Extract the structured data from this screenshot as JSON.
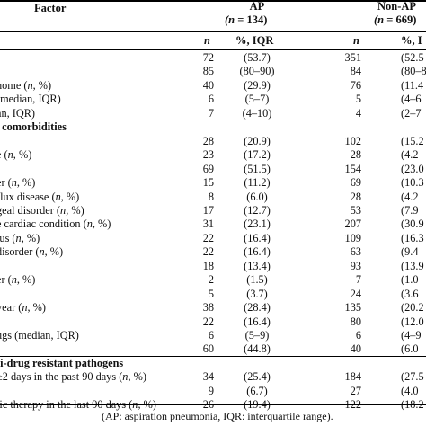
{
  "header": {
    "factor": "Factor",
    "ap_title": "AP",
    "ap_n_prefix": "(n",
    "ap_n_suffix": " = 134)",
    "nonap_title": "Non-AP",
    "nonap_n_prefix": "(n",
    "nonap_n_suffix": " = 669)",
    "col_n": "n",
    "col_pct": "%, IQR",
    "col_n2": "n",
    "col_pct2": "%, I"
  },
  "rows": [
    {
      "factor": "",
      "ap_n": "72",
      "ap_v": "(53.7)",
      "nap_n": "351",
      "nap_v": "(52.5"
    },
    {
      "factor": "",
      "ap_n": "85",
      "ap_v": "(80–90)",
      "nap_n": "84",
      "nap_v": "(80–8"
    },
    {
      "factor": " home (",
      "fi": "n",
      "fs": ", %)",
      "ap_n": "40",
      "ap_v": "(29.9)",
      "nap_n": "76",
      "nap_v": "(11.4"
    },
    {
      "factor": " (median, IQR)",
      "ap_n": "6",
      "ap_v": "(5–7)",
      "nap_n": "5",
      "nap_v": "(4–6"
    },
    {
      "factor": "an, IQR)",
      "ap_n": "7",
      "ap_v": "(4–10)",
      "nap_n": "4",
      "nap_v": "(2–7"
    },
    {
      "section": ", comorbidities"
    },
    {
      "factor": "",
      "ap_n": "28",
      "ap_v": "(20.9)",
      "nap_n": "102",
      "nap_v": "(15.2"
    },
    {
      "factor": "e (",
      "fi": "n",
      "fs": ", %)",
      "ap_n": "23",
      "ap_v": "(17.2)",
      "nap_n": "28",
      "nap_v": "(4.2"
    },
    {
      "factor": "",
      "ap_n": "69",
      "ap_v": "(51.5)",
      "nap_n": "154",
      "nap_v": "(23.0"
    },
    {
      "factor": "er (",
      "fi": "n",
      "fs": ", %)",
      "ap_n": "15",
      "ap_v": "(11.2)",
      "nap_n": "69",
      "nap_v": "(10.3"
    },
    {
      "factor": "flux disease (",
      "fi": "n",
      "fs": ", %)",
      "ap_n": "8",
      "ap_v": "(6.0)",
      "nap_n": "28",
      "nap_v": "(4.2"
    },
    {
      "factor": "geal disorder (",
      "fi": "n",
      "fs": ", %)",
      "ap_n": "17",
      "ap_v": "(12.7)",
      "nap_n": "53",
      "nap_v": "(7.9"
    },
    {
      "factor": "e cardiac condition (",
      "fi": "n",
      "fs": ", %)",
      "ap_n": "31",
      "ap_v": "(23.1)",
      "nap_n": "207",
      "nap_v": "(30.9"
    },
    {
      "factor": "tus (",
      "fi": "n",
      "fs": ", %)",
      "ap_n": "22",
      "ap_v": "(16.4)",
      "nap_n": "109",
      "nap_v": "(16.3"
    },
    {
      "factor": "disorder (",
      "fi": "n",
      "fs": ", %)",
      "ap_n": "22",
      "ap_v": "(16.4)",
      "nap_n": "63",
      "nap_v": "(9.4"
    },
    {
      "factor": "",
      "ap_n": "18",
      "ap_v": "(13.4)",
      "nap_n": "93",
      "nap_v": "(13.9"
    },
    {
      "factor": "er (",
      "fi": "n",
      "fs": ", %)",
      "ap_n": "2",
      "ap_v": "(1.5)",
      "nap_n": "7",
      "nap_v": "(1.0"
    },
    {
      "factor": "",
      "ap_n": "5",
      "ap_v": "(3.7)",
      "nap_n": "24",
      "nap_v": "(3.6"
    },
    {
      "factor": " year (",
      "fi": "n",
      "fs": ", %)",
      "ap_n": "38",
      "ap_v": "(28.4)",
      "nap_n": "135",
      "nap_v": "(20.2"
    },
    {
      "factor": "",
      "ap_n": "22",
      "ap_v": "(16.4)",
      "nap_n": "80",
      "nap_v": "(12.0"
    },
    {
      "factor": "ugs (median, IQR)",
      "ap_n": "6",
      "ap_v": "(5–9)",
      "nap_n": "6",
      "nap_v": "(4–9"
    },
    {
      "factor": "",
      "ap_n": "60",
      "ap_v": "(44.8)",
      "nap_n": "40",
      "nap_v": "(6.0"
    },
    {
      "section": "ti-drug resistant pathogens"
    },
    {
      "factor": "≥2 days in the past 90 days (",
      "fi": "n",
      "fs": ", %)",
      "ap_n": "34",
      "ap_v": "(25.4)",
      "nap_n": "184",
      "nap_v": "(27.5"
    },
    {
      "factor": ")",
      "ap_n": "9",
      "ap_v": "(6.7)",
      "nap_n": "27",
      "nap_v": "(4.0"
    },
    {
      "factor": "tic therapy in the last 90 days (",
      "fi": "n",
      "fs": ", %)",
      "ap_n": "26",
      "ap_v": "(19.4)",
      "nap_n": "122",
      "nap_v": "(18.2"
    }
  ],
  "footer": "(AP: aspiration pneumonia, IQR: interquartile range)."
}
